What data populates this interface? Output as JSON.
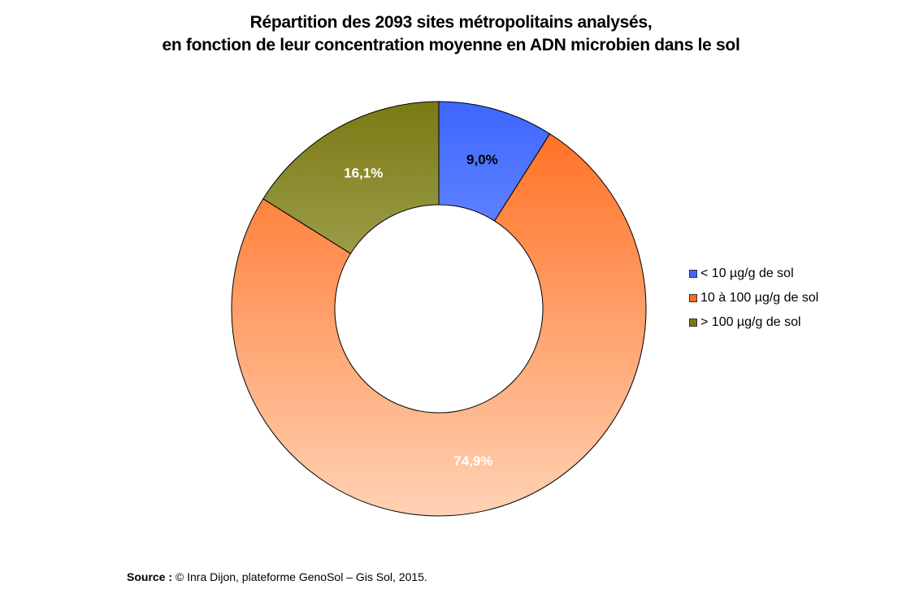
{
  "chart_data": {
    "type": "pie",
    "subtype": "donut",
    "title_line1": "Répartition des 2093 sites métropolitains analysés,",
    "title_line2": "en fonction de leur concentration moyenne en ADN microbien dans le sol",
    "slices": [
      {
        "name": "< 10 µg/g de sol",
        "value": 9.0,
        "label": "9,0%",
        "color": "#3d66ff",
        "color_light": "#b0c4ff",
        "label_color": "#000000"
      },
      {
        "name": "10 à 100 µg/g de sol",
        "value": 74.9,
        "label": "74,9%",
        "color": "#ff6a1a",
        "color_light": "#ffd2b4",
        "label_color": "#ffffff"
      },
      {
        "name": "> 100 µg/g de sol",
        "value": 16.1,
        "label": "16,1%",
        "color": "#7a7a14",
        "color_light": "#d6d6a4",
        "label_color": "#ffffff"
      }
    ],
    "legend_position": "right"
  },
  "source": {
    "prefix": "Source :",
    "text": " © Inra Dijon, plateforme  GenoSol – Gis Sol, 2015."
  }
}
